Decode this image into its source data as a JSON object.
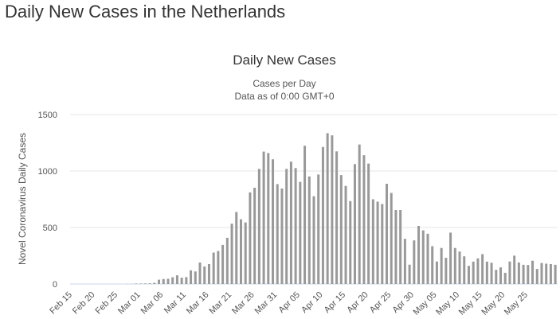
{
  "page_title": "Daily New Cases in the Netherlands",
  "chart_data": {
    "type": "bar",
    "title": "Daily New Cases",
    "subtitle": [
      "Cases per Day",
      "Data as of 0:00 GMT+0"
    ],
    "y_label": "Novel Coronavirus Daily Cases",
    "categories": [
      "Feb 15",
      null,
      null,
      null,
      null,
      "Feb 20",
      null,
      null,
      null,
      null,
      "Feb 25",
      null,
      null,
      null,
      null,
      "Mar 01",
      null,
      null,
      null,
      null,
      "Mar 06",
      null,
      null,
      null,
      null,
      "Mar 11",
      null,
      null,
      null,
      null,
      "Mar 16",
      null,
      null,
      null,
      null,
      "Mar 21",
      null,
      null,
      null,
      null,
      "Mar 26",
      null,
      null,
      null,
      null,
      "Mar 31",
      null,
      null,
      null,
      null,
      "Apr 05",
      null,
      null,
      null,
      null,
      "Apr 10",
      null,
      null,
      null,
      null,
      "Apr 15",
      null,
      null,
      null,
      null,
      "Apr 20",
      null,
      null,
      null,
      null,
      "Apr 25",
      null,
      null,
      null,
      null,
      "Apr 30",
      null,
      null,
      null,
      null,
      "May 05",
      null,
      null,
      null,
      null,
      "May 10",
      null,
      null,
      null,
      null,
      "May 15",
      null,
      null,
      null,
      null,
      "May 20",
      null,
      null,
      null,
      null,
      "May 25",
      null,
      null,
      null,
      null,
      null,
      null
    ],
    "values": [
      0,
      0,
      0,
      0,
      0,
      0,
      0,
      0,
      0,
      0,
      0,
      0,
      1,
      1,
      4,
      4,
      5,
      6,
      10,
      38,
      44,
      46,
      60,
      77,
      56,
      61,
      121,
      111,
      190,
      155,
      176,
      278,
      292,
      346,
      409,
      534,
      637,
      573,
      545,
      811,
      852,
      1019,
      1172,
      1159,
      1104,
      884,
      845,
      1019,
      1083,
      1026,
      904,
      1224,
      952,
      777,
      969,
      1213,
      1335,
      1316,
      1174,
      964,
      868,
      734,
      1061,
      1235,
      1140,
      1066,
      750,
      729,
      708,
      887,
      806,
      655,
      655,
      400,
      171,
      386,
      514,
      475,
      445,
      335,
      199,
      319,
      232,
      455,
      319,
      287,
      245,
      161,
      198,
      227,
      264,
      198,
      188,
      125,
      147,
      99,
      199,
      251,
      190,
      170,
      168,
      206,
      133,
      186,
      180,
      176,
      170
    ],
    "color": "#999999",
    "ylim": [
      0,
      1500
    ],
    "yticks": [
      0,
      500,
      1000,
      1500
    ],
    "grid": true
  }
}
